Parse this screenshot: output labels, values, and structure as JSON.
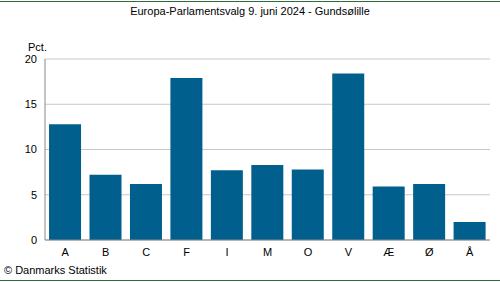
{
  "chart_data": {
    "type": "bar",
    "title": "Europa-Parlamentsvalg 9. juni 2024 - Gundsølille",
    "y_label": "Pct.",
    "annotations": [
      "© Danmarks Statistik"
    ],
    "categories": [
      "A",
      "B",
      "C",
      "F",
      "I",
      "M",
      "O",
      "V",
      "Æ",
      "Ø",
      "Å"
    ],
    "values": [
      12.8,
      7.2,
      6.2,
      17.9,
      7.7,
      8.3,
      7.8,
      18.4,
      5.9,
      6.2,
      2.0
    ],
    "color": "#005f8c",
    "ylim": [
      0,
      20
    ],
    "yticks": [
      0,
      5,
      10,
      15,
      20
    ],
    "grid": true
  }
}
